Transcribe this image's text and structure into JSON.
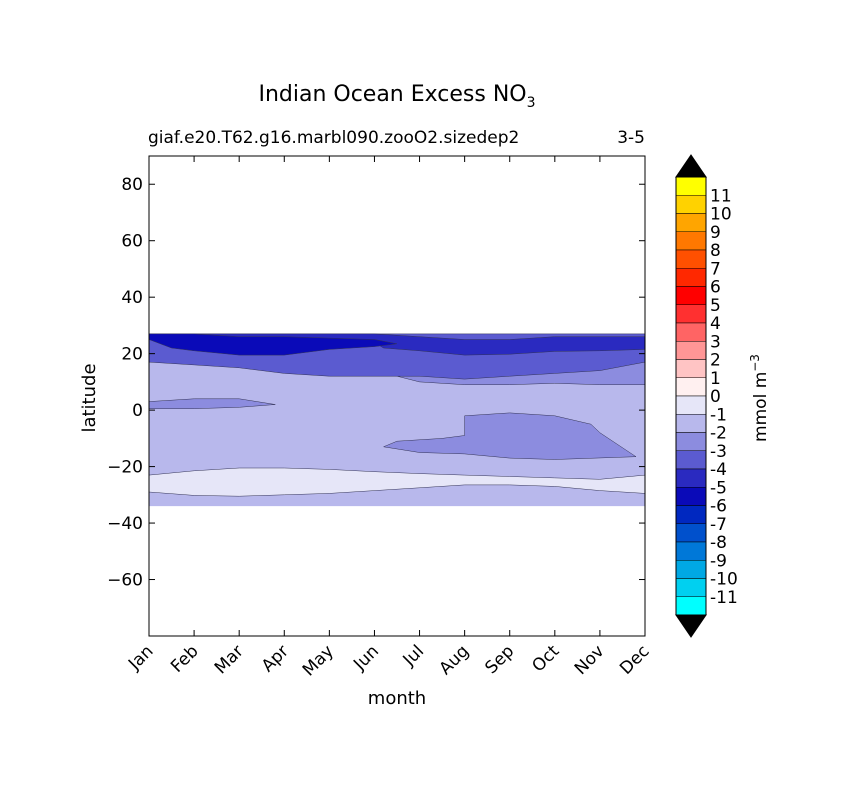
{
  "chart_data": {
    "type": "contour",
    "title_main": "Indian Ocean Excess NO",
    "title_sub": "3",
    "subtitle_left": "giaf.e20.T62.g16.marbl090.zooO2.sizedep2",
    "subtitle_right": "3-5",
    "xlabel": "month",
    "ylabel": "latitude",
    "x_categories": [
      "Jan",
      "Feb",
      "Mar",
      "Apr",
      "May",
      "Jun",
      "Jul",
      "Aug",
      "Sep",
      "Oct",
      "Nov",
      "Dec"
    ],
    "ylim": [
      -80,
      90
    ],
    "yticks": [
      80,
      60,
      40,
      20,
      0,
      -20,
      -40,
      -60
    ],
    "ytick_labels": [
      "80",
      "60",
      "40",
      "20",
      "0",
      "−20",
      "−40",
      "−60"
    ],
    "data_lat_range": [
      -34,
      27
    ],
    "regions": [
      {
        "name": "-1 to 0",
        "color": "#e6e6f8",
        "polygon": [
          [
            0,
            -23
          ],
          [
            1,
            -21.5
          ],
          [
            2,
            -20.5
          ],
          [
            3,
            -20.5
          ],
          [
            4,
            -21
          ],
          [
            5,
            -21.8
          ],
          [
            6,
            -22.5
          ],
          [
            7,
            -23
          ],
          [
            8,
            -23.5
          ],
          [
            9,
            -24
          ],
          [
            10,
            -24.5
          ],
          [
            11,
            -23
          ],
          [
            11,
            -29.5
          ],
          [
            10,
            -28.5
          ],
          [
            9,
            -27
          ],
          [
            8,
            -26.5
          ],
          [
            7,
            -26.5
          ],
          [
            6,
            -27.5
          ],
          [
            5,
            -28.5
          ],
          [
            4,
            -29.5
          ],
          [
            3,
            -30
          ],
          [
            2,
            -30.5
          ],
          [
            1,
            -30.2
          ],
          [
            0,
            -29
          ]
        ]
      },
      {
        "name": "-3 to -2",
        "color": "#8c8cdf",
        "polygon": [
          [
            0,
            22
          ],
          [
            2,
            17
          ],
          [
            3,
            15.5
          ],
          [
            4,
            14.5
          ],
          [
            5,
            14
          ],
          [
            5.5,
            12
          ],
          [
            6,
            10
          ],
          [
            7,
            9
          ],
          [
            8,
            9
          ],
          [
            9,
            9.5
          ],
          [
            10,
            9
          ],
          [
            11,
            9
          ],
          [
            11,
            19
          ],
          [
            10,
            18.5
          ],
          [
            9,
            17.8
          ],
          [
            8,
            17
          ],
          [
            7,
            17
          ],
          [
            6,
            18
          ],
          [
            5,
            20.5
          ],
          [
            4,
            22
          ],
          [
            3,
            22
          ],
          [
            2,
            22
          ],
          [
            1,
            22
          ]
        ]
      },
      {
        "name": "-3 to -2 (west)",
        "color": "#8c8cdf",
        "polygon": [
          [
            0,
            3
          ],
          [
            1,
            4
          ],
          [
            2,
            4
          ],
          [
            2.8,
            2
          ],
          [
            2,
            1
          ],
          [
            1,
            0.5
          ],
          [
            0,
            0.5
          ]
        ]
      },
      {
        "name": "-3 to -2 (south)",
        "color": "#8c8cdf",
        "polygon": [
          [
            7,
            -2
          ],
          [
            8,
            -1
          ],
          [
            9,
            -2
          ],
          [
            9.8,
            -5
          ],
          [
            10,
            -8
          ],
          [
            10.8,
            -16.5
          ],
          [
            9,
            -17.5
          ],
          [
            8,
            -17
          ],
          [
            7,
            -15.5
          ],
          [
            6,
            -15
          ],
          [
            5.2,
            -13
          ],
          [
            5.5,
            -11
          ],
          [
            6.5,
            -10
          ],
          [
            7,
            -9
          ]
        ]
      },
      {
        "name": "-4 to -3",
        "color": "#5b5bd0",
        "polygon": [
          [
            0,
            17
          ],
          [
            1,
            16
          ],
          [
            2,
            15
          ],
          [
            3,
            13
          ],
          [
            4,
            12
          ],
          [
            5,
            12
          ],
          [
            6,
            12
          ],
          [
            7,
            11
          ],
          [
            8,
            12
          ],
          [
            9,
            13
          ],
          [
            10,
            14
          ],
          [
            11,
            17
          ],
          [
            11,
            27
          ],
          [
            0,
            27
          ]
        ]
      },
      {
        "name": "-5 to -4",
        "color": "#2a2ac0",
        "polygon": [
          [
            0,
            25
          ],
          [
            2,
            25
          ],
          [
            3,
            24.5
          ],
          [
            4,
            25
          ],
          [
            5,
            24
          ],
          [
            5.2,
            22
          ],
          [
            6,
            21
          ],
          [
            7,
            19.5
          ],
          [
            8,
            19.8
          ],
          [
            9,
            20.8
          ],
          [
            10,
            21
          ],
          [
            11,
            21.5
          ],
          [
            11,
            26
          ],
          [
            9,
            26
          ],
          [
            8,
            25
          ],
          [
            7,
            25
          ],
          [
            6,
            26
          ],
          [
            5,
            27
          ],
          [
            0,
            27
          ]
        ]
      },
      {
        "name": "-6 to -5",
        "color": "#0a0ab8",
        "polygon": [
          [
            0,
            25
          ],
          [
            0.5,
            22
          ],
          [
            1,
            21
          ],
          [
            2,
            19.5
          ],
          [
            3,
            19.5
          ],
          [
            4,
            21.5
          ],
          [
            5,
            22.5
          ],
          [
            5.5,
            23.5
          ],
          [
            5,
            25
          ],
          [
            4,
            25.5
          ],
          [
            3,
            26
          ],
          [
            2,
            26
          ],
          [
            1,
            27
          ],
          [
            0,
            27
          ]
        ]
      }
    ],
    "colorbar": {
      "label": "mmol m",
      "label_sup": "−3",
      "labels": [
        "11",
        "10",
        "9",
        "8",
        "7",
        "6",
        "5",
        "4",
        "3",
        "2",
        "1",
        "0",
        "-1",
        "-2",
        "-3",
        "-4",
        "-5",
        "-6",
        "-7",
        "-8",
        "-9",
        "-10",
        "-11"
      ],
      "colors": [
        "#ffff00",
        "#ffd200",
        "#ffa500",
        "#ff7800",
        "#ff5000",
        "#ff2800",
        "#ff0000",
        "#ff3030",
        "#ff6464",
        "#ff9696",
        "#ffc4c4",
        "#fff0f0",
        "#e6e6f8",
        "#b8b8ec",
        "#8c8cdf",
        "#5b5bd0",
        "#2a2ac0",
        "#0a0ab8",
        "#0028c0",
        "#0050cc",
        "#0078d8",
        "#00a8e4",
        "#00d0f0",
        "#00ffff"
      ],
      "extend_colors": [
        "#000000",
        "#000000"
      ]
    }
  }
}
